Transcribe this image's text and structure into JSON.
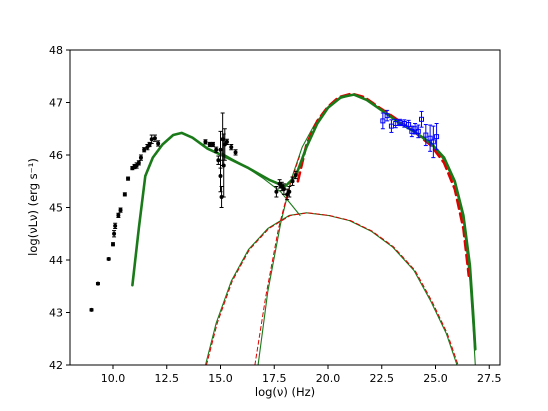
{
  "chart_data": {
    "type": "scatter",
    "title": "",
    "xlabel": "log(ν) (Hz)",
    "ylabel": "log(νLν) (erg s⁻¹)",
    "xlim": [
      8.0,
      28.0
    ],
    "ylim": [
      42,
      48
    ],
    "xticks": [
      10.0,
      12.5,
      15.0,
      17.5,
      20.0,
      22.5,
      25.0,
      27.5
    ],
    "xtick_labels": [
      "10.0",
      "12.5",
      "15.0",
      "17.5",
      "20.0",
      "22.5",
      "25.0",
      "27.5"
    ],
    "yticks": [
      42,
      43,
      44,
      45,
      46,
      47,
      48
    ],
    "ytick_labels": [
      "42",
      "43",
      "44",
      "45",
      "46",
      "47",
      "48"
    ],
    "grid": false,
    "colors": {
      "data_black": "#000000",
      "data_blue": "#0000ff",
      "green": "#1a7a1a",
      "red": "#e00000"
    },
    "series": [
      {
        "style": "black-points",
        "points": [
          [
            9.0,
            43.05,
            0.02
          ],
          [
            9.3,
            43.55,
            0.02
          ],
          [
            9.8,
            44.02,
            0.02
          ],
          [
            10.0,
            44.3,
            0.03
          ],
          [
            10.05,
            44.5,
            0.06
          ],
          [
            10.1,
            44.65,
            0.05
          ],
          [
            10.25,
            44.85,
            0.04
          ],
          [
            10.35,
            44.95,
            0.04
          ],
          [
            10.55,
            45.25,
            0.03
          ],
          [
            10.7,
            45.55,
            0.03
          ],
          [
            10.9,
            45.75,
            0.03
          ],
          [
            11.0,
            45.78,
            0.04
          ],
          [
            11.1,
            45.8,
            0.05
          ],
          [
            11.2,
            45.85,
            0.04
          ],
          [
            11.3,
            45.95,
            0.05
          ],
          [
            11.45,
            46.1,
            0.04
          ],
          [
            11.6,
            46.15,
            0.05
          ],
          [
            11.7,
            46.2,
            0.04
          ],
          [
            11.8,
            46.3,
            0.08
          ],
          [
            11.95,
            46.32,
            0.06
          ],
          [
            12.1,
            46.22,
            0.05
          ],
          [
            14.3,
            46.25,
            0.04
          ],
          [
            14.5,
            46.2,
            0.04
          ],
          [
            14.65,
            46.2,
            0.04
          ],
          [
            14.8,
            46.1,
            0.05
          ],
          [
            14.9,
            45.9,
            0.08
          ],
          [
            15.0,
            45.6,
            0.3
          ],
          [
            15.0,
            46.1,
            0.35
          ],
          [
            15.05,
            45.2,
            0.2
          ],
          [
            15.1,
            46.3,
            0.5
          ],
          [
            15.15,
            45.8,
            0.6
          ],
          [
            15.2,
            46.2,
            0.3
          ],
          [
            15.3,
            46.25,
            0.05
          ],
          [
            15.5,
            46.15,
            0.05
          ],
          [
            15.7,
            46.05,
            0.05
          ],
          [
            17.6,
            45.3,
            0.1
          ],
          [
            17.75,
            45.45,
            0.08
          ],
          [
            17.85,
            45.4,
            0.08
          ],
          [
            17.95,
            45.35,
            0.1
          ],
          [
            18.1,
            45.25,
            0.1
          ],
          [
            18.2,
            45.3,
            0.1
          ],
          [
            18.35,
            45.5,
            0.08
          ],
          [
            18.5,
            45.62,
            0.07
          ]
        ]
      },
      {
        "style": "blue-points",
        "points": [
          [
            22.55,
            46.65,
            0.15
          ],
          [
            22.75,
            46.75,
            0.1
          ],
          [
            22.95,
            46.55,
            0.12
          ],
          [
            23.15,
            46.6,
            0.08
          ],
          [
            23.35,
            46.62,
            0.06
          ],
          [
            23.55,
            46.6,
            0.07
          ],
          [
            23.75,
            46.58,
            0.08
          ],
          [
            23.9,
            46.45,
            0.1
          ],
          [
            24.05,
            46.5,
            0.1
          ],
          [
            24.2,
            46.45,
            0.12
          ],
          [
            24.35,
            46.68,
            0.15
          ],
          [
            24.55,
            46.38,
            0.2
          ],
          [
            24.75,
            46.32,
            0.25
          ],
          [
            24.9,
            46.25,
            0.3
          ],
          [
            25.05,
            46.35,
            0.25
          ]
        ]
      },
      {
        "style": "green-thick",
        "points": [
          [
            10.9,
            43.52
          ],
          [
            11.2,
            44.6
          ],
          [
            11.5,
            45.6
          ],
          [
            11.85,
            45.95
          ],
          [
            12.3,
            46.2
          ],
          [
            12.8,
            46.38
          ],
          [
            13.2,
            46.42
          ],
          [
            13.7,
            46.33
          ],
          [
            14.4,
            46.12
          ],
          [
            15.3,
            45.95
          ],
          [
            16.3,
            45.75
          ],
          [
            17.3,
            45.52
          ],
          [
            18.0,
            45.4
          ],
          [
            18.5,
            45.6
          ],
          [
            19.0,
            46.15
          ],
          [
            19.5,
            46.6
          ],
          [
            20.0,
            46.9
          ],
          [
            20.6,
            47.1
          ],
          [
            21.2,
            47.15
          ],
          [
            21.8,
            47.05
          ],
          [
            22.5,
            46.85
          ],
          [
            23.3,
            46.62
          ],
          [
            24.0,
            46.45
          ],
          [
            24.8,
            46.22
          ],
          [
            25.4,
            45.95
          ],
          [
            25.9,
            45.5
          ],
          [
            26.3,
            44.85
          ],
          [
            26.6,
            43.9
          ],
          [
            26.75,
            43.0
          ],
          [
            26.85,
            42.3
          ]
        ]
      },
      {
        "style": "red-dashed",
        "points": [
          [
            18.6,
            45.5
          ],
          [
            19.0,
            46.2
          ],
          [
            19.5,
            46.65
          ],
          [
            20.0,
            46.92
          ],
          [
            20.5,
            47.1
          ],
          [
            21.1,
            47.17
          ],
          [
            21.7,
            47.1
          ],
          [
            22.4,
            46.9
          ],
          [
            23.2,
            46.68
          ],
          [
            24.0,
            46.45
          ],
          [
            24.8,
            46.18
          ],
          [
            25.4,
            45.85
          ],
          [
            25.9,
            45.35
          ],
          [
            26.3,
            44.6
          ],
          [
            26.55,
            43.7
          ]
        ]
      },
      {
        "style": "green-thin",
        "points": [
          [
            16.75,
            42.0
          ],
          [
            17.2,
            43.4
          ],
          [
            17.8,
            44.7
          ],
          [
            18.3,
            45.55
          ],
          [
            18.8,
            46.15
          ],
          [
            19.4,
            46.6
          ],
          [
            20.0,
            46.9
          ],
          [
            20.6,
            47.08
          ],
          [
            21.2,
            47.15
          ],
          [
            21.8,
            47.05
          ],
          [
            22.5,
            46.85
          ],
          [
            23.3,
            46.62
          ],
          [
            24.0,
            46.45
          ],
          [
            24.8,
            46.2
          ],
          [
            25.4,
            45.9
          ],
          [
            25.9,
            45.45
          ],
          [
            26.3,
            44.75
          ],
          [
            26.6,
            43.6
          ],
          [
            26.75,
            42.7
          ],
          [
            26.85,
            42.0
          ]
        ]
      },
      {
        "style": "green-thin",
        "points": [
          [
            15.0,
            46.05
          ],
          [
            16.0,
            45.82
          ],
          [
            17.0,
            45.55
          ],
          [
            17.8,
            45.3
          ],
          [
            18.3,
            45.05
          ],
          [
            18.7,
            44.85
          ]
        ]
      },
      {
        "style": "green-thin",
        "points": [
          [
            14.3,
            42.0
          ],
          [
            14.8,
            42.8
          ],
          [
            15.5,
            43.6
          ],
          [
            16.3,
            44.2
          ],
          [
            17.2,
            44.6
          ],
          [
            18.2,
            44.85
          ],
          [
            19.0,
            44.9
          ],
          [
            20.0,
            44.85
          ],
          [
            21.0,
            44.75
          ],
          [
            22.0,
            44.55
          ],
          [
            23.0,
            44.25
          ],
          [
            24.0,
            43.8
          ],
          [
            24.8,
            43.2
          ],
          [
            25.5,
            42.6
          ],
          [
            26.0,
            42.0
          ]
        ]
      },
      {
        "style": "red-thin-dashed",
        "points": [
          [
            14.35,
            42.0
          ],
          [
            14.85,
            42.8
          ],
          [
            15.55,
            43.6
          ],
          [
            16.35,
            44.2
          ],
          [
            17.25,
            44.6
          ],
          [
            18.25,
            44.85
          ],
          [
            19.05,
            44.9
          ],
          [
            20.05,
            44.85
          ],
          [
            21.05,
            44.75
          ],
          [
            22.05,
            44.55
          ],
          [
            23.05,
            44.25
          ],
          [
            24.05,
            43.8
          ],
          [
            24.85,
            43.2
          ],
          [
            25.55,
            42.6
          ],
          [
            26.05,
            42.0
          ]
        ]
      },
      {
        "style": "red-thin-dashed",
        "points": [
          [
            16.6,
            42.0
          ],
          [
            17.1,
            43.3
          ],
          [
            17.7,
            44.6
          ],
          [
            18.2,
            45.4
          ],
          [
            18.7,
            46.0
          ]
        ]
      }
    ]
  }
}
